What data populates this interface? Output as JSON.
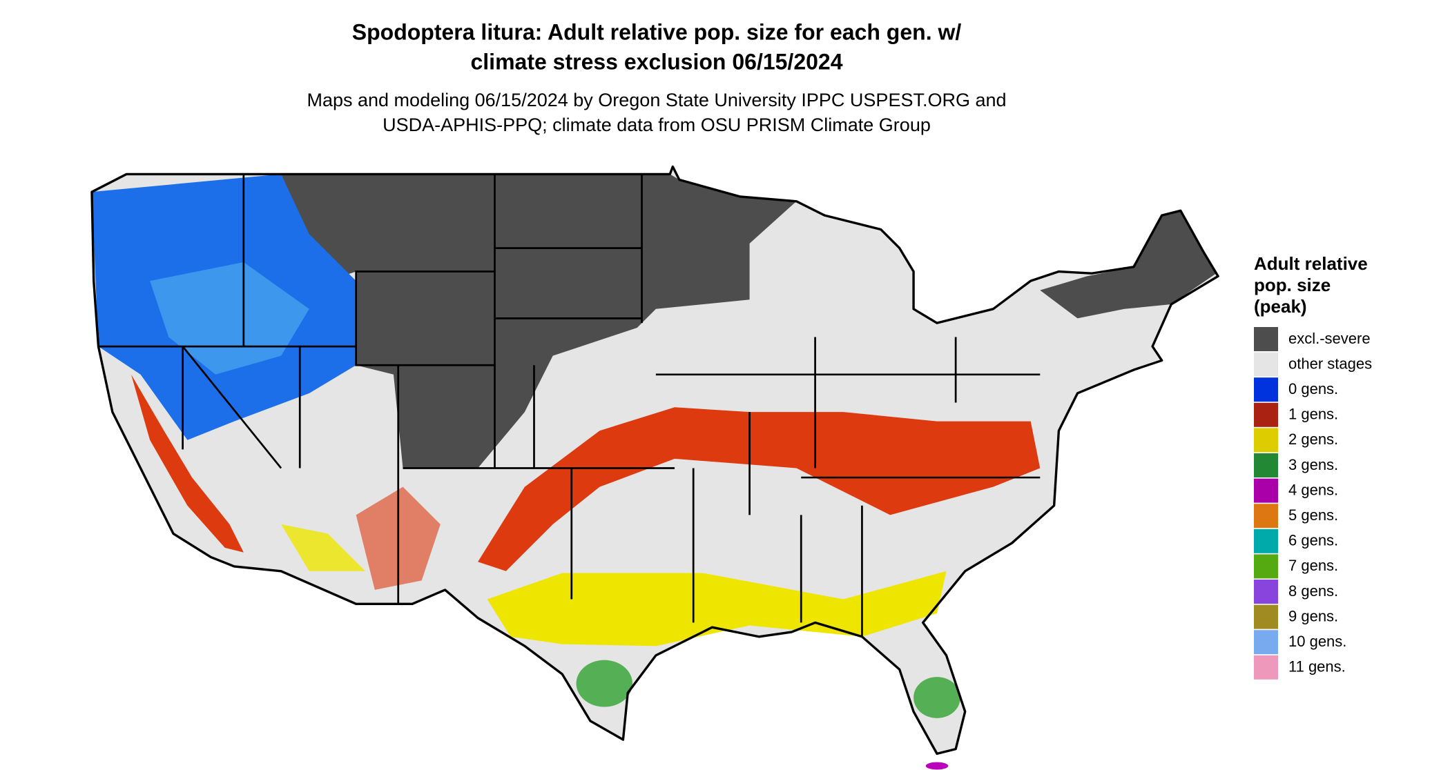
{
  "header": {
    "title": [
      "Spodoptera litura: Adult relative pop. size for each gen. w/",
      "climate stress exclusion 06/15/2024"
    ],
    "subtitle": [
      "Maps and modeling 06/15/2024 by Oregon State University IPPC USPEST.ORG and",
      "USDA-APHIS-PPQ; climate data from OSU PRISM Climate Group"
    ]
  },
  "legend": {
    "title": [
      "Adult relative",
      "pop. size",
      "(peak)"
    ],
    "items": [
      {
        "label": "excl.-severe",
        "color": "#4d4d4d"
      },
      {
        "label": "other stages",
        "color": "#e5e5e5"
      },
      {
        "label": "0 gens.",
        "color": "#0033dd"
      },
      {
        "label": "1 gens.",
        "color": "#aa2211"
      },
      {
        "label": "2 gens.",
        "color": "#ddcc00"
      },
      {
        "label": "3 gens.",
        "color": "#228833"
      },
      {
        "label": "4 gens.",
        "color": "#aa00aa"
      },
      {
        "label": "5 gens.",
        "color": "#dd7711"
      },
      {
        "label": "6 gens.",
        "color": "#00aaaa"
      },
      {
        "label": "7 gens.",
        "color": "#55aa11"
      },
      {
        "label": "8 gens.",
        "color": "#8844dd"
      },
      {
        "label": "9 gens.",
        "color": "#a08a22"
      },
      {
        "label": "10 gens.",
        "color": "#77aaee"
      },
      {
        "label": "11 gens.",
        "color": "#ee99bb"
      }
    ]
  }
}
